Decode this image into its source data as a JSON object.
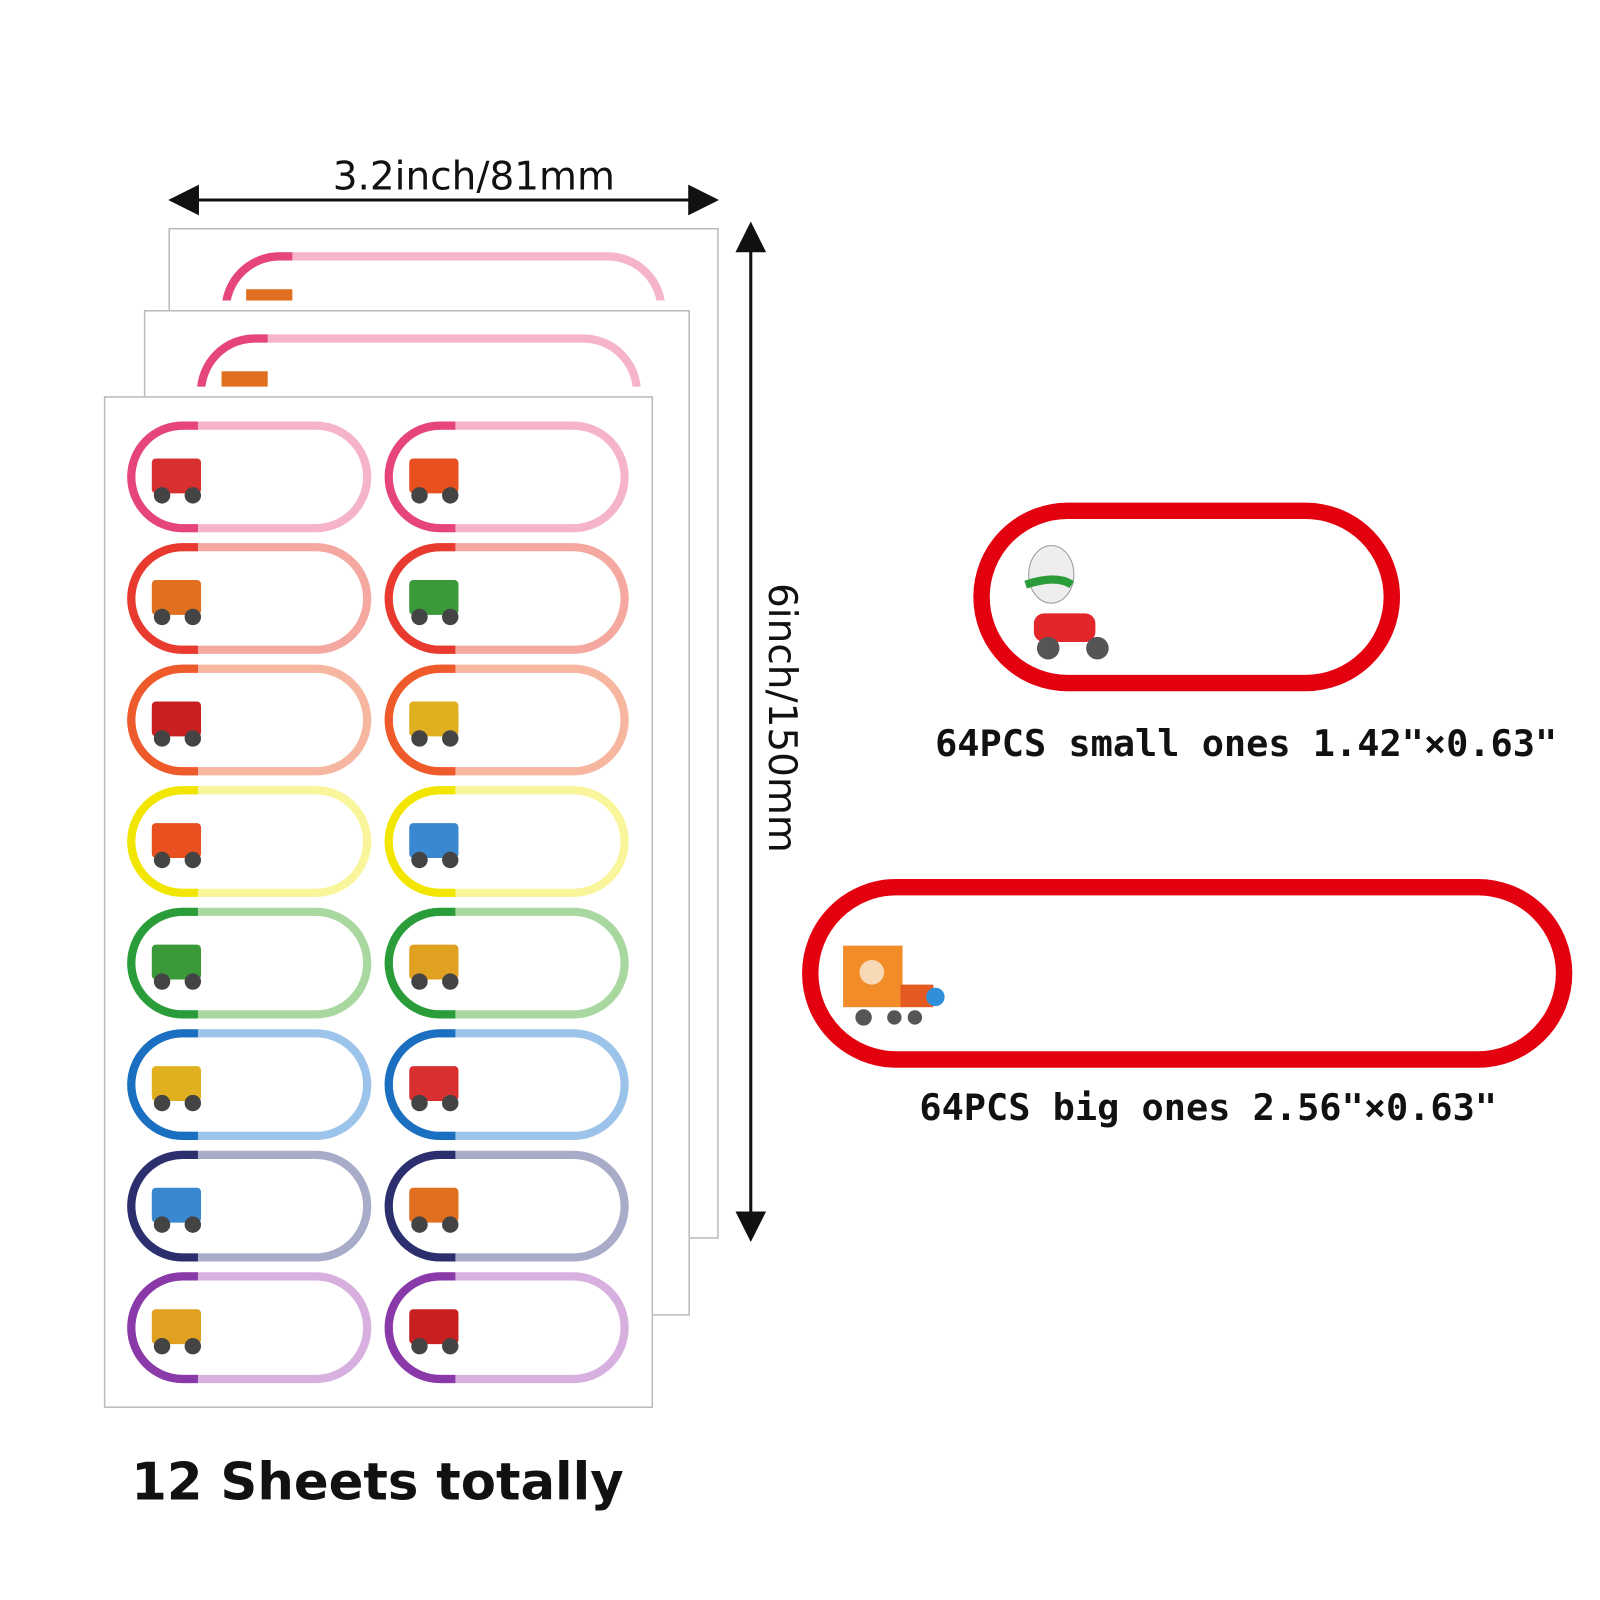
{
  "width_label": "3.2inch/81mm",
  "height_label": "6inch/150mm",
  "small_caption": "64PCS small ones 1.42\"×0.63\"",
  "big_caption": "64PCS big ones 2.56\"×0.63\"",
  "sheets_caption": "12 Sheets totally"
}
